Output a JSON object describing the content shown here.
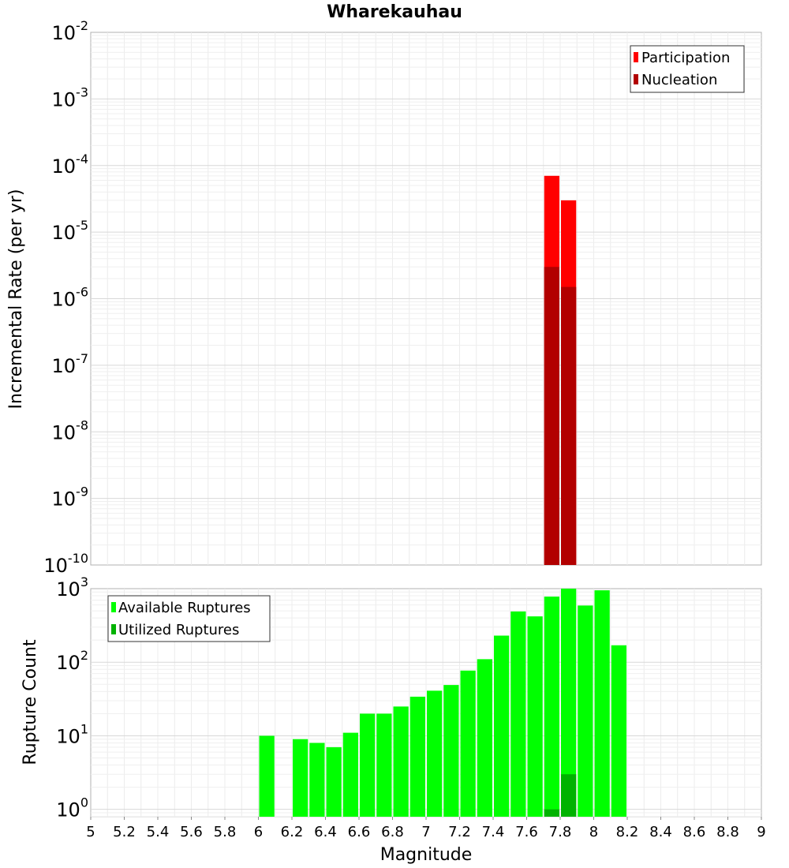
{
  "chart_data": [
    {
      "type": "bar",
      "title": "Wharekauhau",
      "xlabel": "",
      "ylabel": "Incremental Rate (per yr)",
      "yscale": "log",
      "ylim_exp": [
        -10,
        -2
      ],
      "xlim": [
        5,
        9
      ],
      "bin_width": 0.1,
      "y_ticks": [
        {
          "base": "10",
          "exp": "-2"
        },
        {
          "base": "10",
          "exp": "-3"
        },
        {
          "base": "10",
          "exp": "-4"
        },
        {
          "base": "10",
          "exp": "-5"
        },
        {
          "base": "10",
          "exp": "-6"
        },
        {
          "base": "10",
          "exp": "-7"
        },
        {
          "base": "10",
          "exp": "-8"
        },
        {
          "base": "10",
          "exp": "-9"
        },
        {
          "base": "10",
          "exp": "-10"
        }
      ],
      "legend": {
        "position": "top-right"
      },
      "series": [
        {
          "name": "Participation",
          "color": "#ff0000",
          "x": [
            7.75,
            7.85
          ],
          "values": [
            7e-05,
            3e-05
          ]
        },
        {
          "name": "Nucleation",
          "color": "#b20000",
          "x": [
            7.75,
            7.85
          ],
          "values": [
            3e-06,
            1.5e-06
          ]
        }
      ]
    },
    {
      "type": "bar",
      "title": "",
      "xlabel": "Magnitude",
      "ylabel": "Rupture Count",
      "yscale": "log",
      "ylim_exp": [
        -0.1,
        3
      ],
      "xlim": [
        5,
        9
      ],
      "bin_width": 0.1,
      "x_ticks": [
        "5",
        "5.2",
        "5.4",
        "5.6",
        "5.8",
        "6",
        "6.2",
        "6.4",
        "6.6",
        "6.8",
        "7",
        "7.2",
        "7.4",
        "7.6",
        "7.8",
        "8",
        "8.2",
        "8.4",
        "8.6",
        "8.8",
        "9"
      ],
      "y_ticks": [
        {
          "base": "10",
          "exp": "3"
        },
        {
          "base": "10",
          "exp": "2"
        },
        {
          "base": "10",
          "exp": "1"
        },
        {
          "base": "10",
          "exp": "0"
        }
      ],
      "legend": {
        "position": "top-left"
      },
      "series": [
        {
          "name": "Available Ruptures",
          "color": "#00ff00",
          "x": [
            6.05,
            6.25,
            6.35,
            6.45,
            6.55,
            6.65,
            6.75,
            6.85,
            6.95,
            7.05,
            7.15,
            7.25,
            7.35,
            7.45,
            7.55,
            7.65,
            7.75,
            7.85,
            7.95,
            8.05,
            8.15
          ],
          "values": [
            10,
            9,
            8,
            7,
            11,
            20,
            20,
            25,
            34,
            41,
            49,
            77,
            110,
            230,
            490,
            420,
            780,
            1000,
            590,
            950,
            170
          ]
        },
        {
          "name": "Utilized Ruptures",
          "color": "#00b200",
          "x": [
            7.75,
            7.85
          ],
          "values": [
            1,
            3
          ]
        }
      ]
    }
  ]
}
